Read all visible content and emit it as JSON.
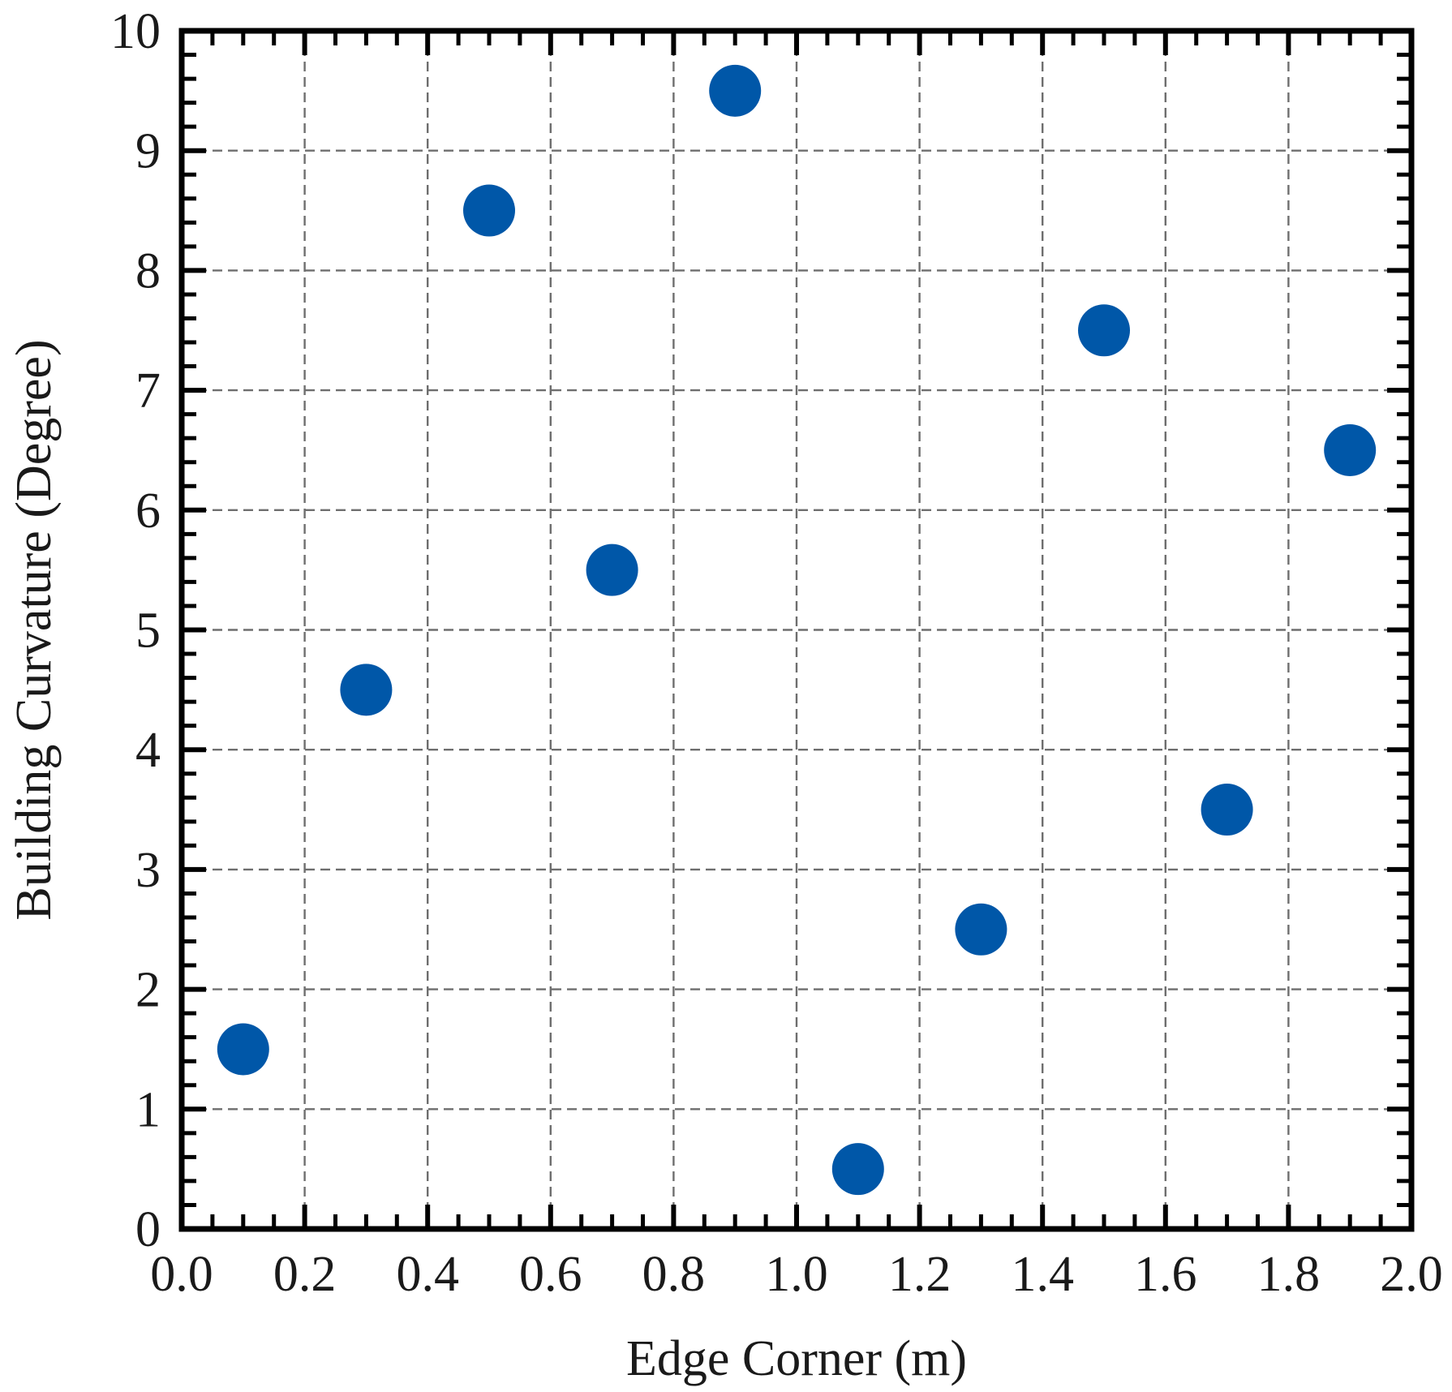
{
  "chart_data": {
    "type": "scatter",
    "title": "",
    "xlabel": "Edge Corner (m)",
    "ylabel": "Building Curvature (Degree)",
    "xlim": [
      0.0,
      2.0
    ],
    "ylim": [
      0,
      10
    ],
    "x_ticks": [
      "0.0",
      "0.2",
      "0.4",
      "0.6",
      "0.8",
      "1.0",
      "1.2",
      "1.4",
      "1.6",
      "1.8",
      "2.0"
    ],
    "y_ticks": [
      "0",
      "1",
      "2",
      "3",
      "4",
      "5",
      "6",
      "7",
      "8",
      "9",
      "10"
    ],
    "x_tick_values": [
      0.0,
      0.2,
      0.4,
      0.6,
      0.8,
      1.0,
      1.2,
      1.4,
      1.6,
      1.8,
      2.0
    ],
    "y_tick_values": [
      0,
      1,
      2,
      3,
      4,
      5,
      6,
      7,
      8,
      9,
      10
    ],
    "grid": true,
    "legend": "none",
    "marker_color": "#0057a8",
    "series": [
      {
        "x": [
          0.1,
          0.3,
          0.5,
          0.7,
          0.9,
          1.1,
          1.3,
          1.5,
          1.7,
          1.9
        ],
        "y": [
          1.5,
          4.5,
          8.5,
          5.5,
          9.5,
          0.5,
          2.5,
          7.5,
          3.5,
          6.5
        ]
      }
    ]
  }
}
